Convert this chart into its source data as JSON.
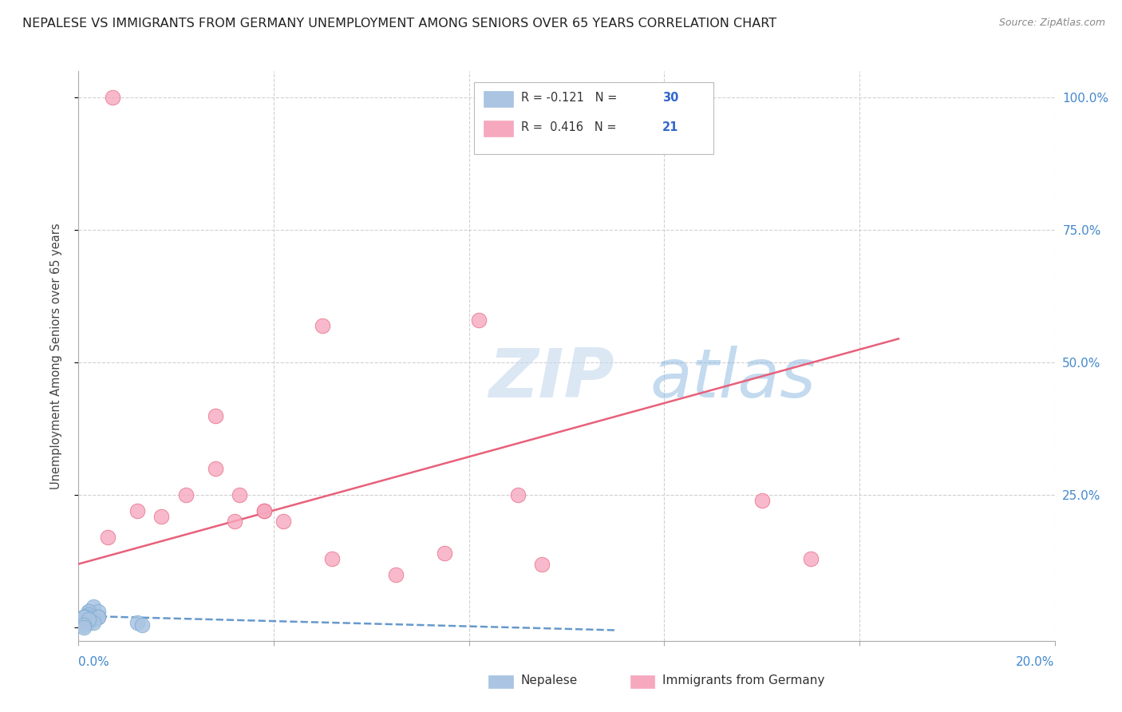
{
  "title": "NEPALESE VS IMMIGRANTS FROM GERMANY UNEMPLOYMENT AMONG SENIORS OVER 65 YEARS CORRELATION CHART",
  "source": "Source: ZipAtlas.com",
  "ylabel": "Unemployment Among Seniors over 65 years",
  "right_yticklabels": [
    "",
    "25.0%",
    "50.0%",
    "75.0%",
    "100.0%"
  ],
  "right_yticks": [
    0.0,
    0.25,
    0.5,
    0.75,
    1.0
  ],
  "nepalese_R": -0.121,
  "nepalese_N": 30,
  "germany_R": 0.416,
  "germany_N": 21,
  "nepalese_color": "#aac4e2",
  "germany_color": "#f5a8be",
  "nepalese_edge_color": "#7aaad0",
  "germany_edge_color": "#e8607a",
  "nepalese_line_color": "#6699cc",
  "germany_line_color": "#e8607a",
  "watermark_zip": "ZIP",
  "watermark_atlas": "atlas",
  "nepalese_x": [
    0.001,
    0.002,
    0.001,
    0.003,
    0.002,
    0.004,
    0.001,
    0.002,
    0.003,
    0.001,
    0.002,
    0.001,
    0.003,
    0.004,
    0.002,
    0.001,
    0.002,
    0.003,
    0.001,
    0.002,
    0.004,
    0.002,
    0.003,
    0.001,
    0.012,
    0.013,
    0.001,
    0.002,
    0.001,
    0.001
  ],
  "nepalese_y": [
    0.02,
    0.03,
    0.015,
    0.04,
    0.02,
    0.03,
    0.015,
    0.025,
    0.02,
    0.01,
    0.03,
    0.02,
    0.015,
    0.02,
    0.025,
    0.01,
    0.02,
    0.015,
    0.02,
    0.01,
    0.02,
    0.015,
    0.01,
    0.02,
    0.01,
    0.005,
    0.02,
    0.015,
    0.005,
    0.0
  ],
  "germany_x": [
    0.006,
    0.012,
    0.017,
    0.022,
    0.028,
    0.033,
    0.038,
    0.042,
    0.05,
    0.028,
    0.038,
    0.032,
    0.052,
    0.065,
    0.075,
    0.082,
    0.09,
    0.095,
    0.14,
    0.15,
    0.007
  ],
  "germany_y": [
    0.17,
    0.22,
    0.21,
    0.25,
    0.3,
    0.25,
    0.22,
    0.2,
    0.57,
    0.4,
    0.22,
    0.2,
    0.13,
    0.1,
    0.14,
    0.58,
    0.25,
    0.12,
    0.24,
    0.13,
    1.0
  ],
  "germany_line_x0": 0.0,
  "germany_line_y0": 0.12,
  "germany_line_x1": 0.168,
  "germany_line_y1": 0.545,
  "nepalese_line_x0": 0.0,
  "nepalese_line_y0": 0.022,
  "nepalese_line_x1": 0.11,
  "nepalese_line_y1": -0.005,
  "xmin": 0.0,
  "xmax": 0.2,
  "ymin": -0.025,
  "ymax": 1.05
}
